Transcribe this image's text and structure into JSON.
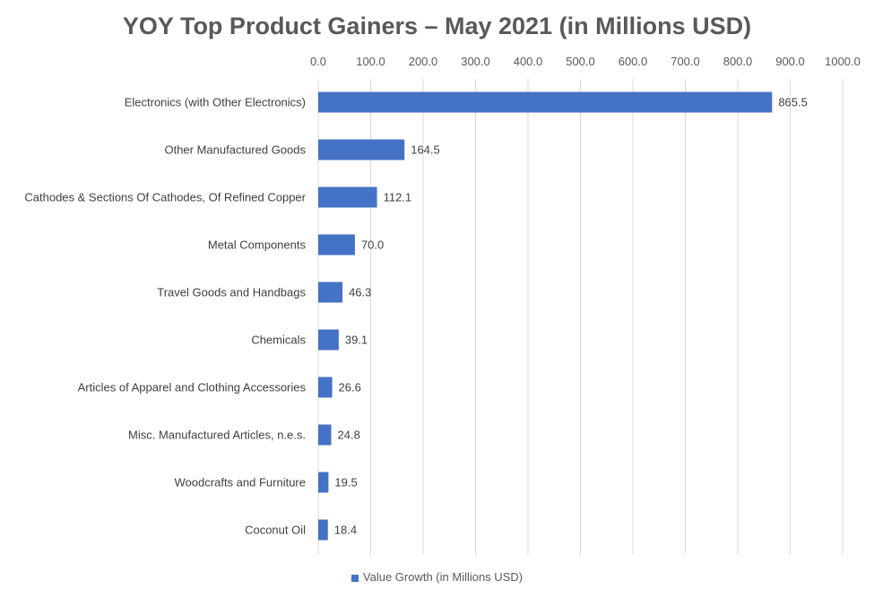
{
  "chart_data": {
    "type": "bar",
    "orientation": "horizontal",
    "title": "YOY Top Product Gainers – May 2021 (in Millions USD)",
    "xlabel": "",
    "ylabel": "",
    "xlim": [
      0,
      1000
    ],
    "x_ticks": [
      "0.0",
      "100.0",
      "200.0",
      "300.0",
      "400.0",
      "500.0",
      "600.0",
      "700.0",
      "800.0",
      "900.0",
      "1000.0"
    ],
    "x_axis_position": "top",
    "grid": true,
    "legend_position": "bottom",
    "categories": [
      "Electronics (with Other Electronics)",
      "Other Manufactured Goods",
      "Cathodes & Sections Of Cathodes, Of Refined Copper",
      "Metal Components",
      "Travel Goods and Handbags",
      "Chemicals",
      "Articles of Apparel and Clothing Accessories",
      "Misc. Manufactured Articles, n.e.s.",
      "Woodcrafts and Furniture",
      "Coconut Oil"
    ],
    "series": [
      {
        "name": "Value Growth (in Millions USD)",
        "color": "#4472C4",
        "values": [
          865.5,
          164.5,
          112.1,
          70.0,
          46.3,
          39.1,
          26.6,
          24.8,
          19.5,
          18.4
        ],
        "labels": [
          "865.5",
          "164.5",
          "112.1",
          "70.0",
          "46.3",
          "39.1",
          "26.6",
          "24.8",
          "19.5",
          "18.4"
        ]
      }
    ]
  }
}
